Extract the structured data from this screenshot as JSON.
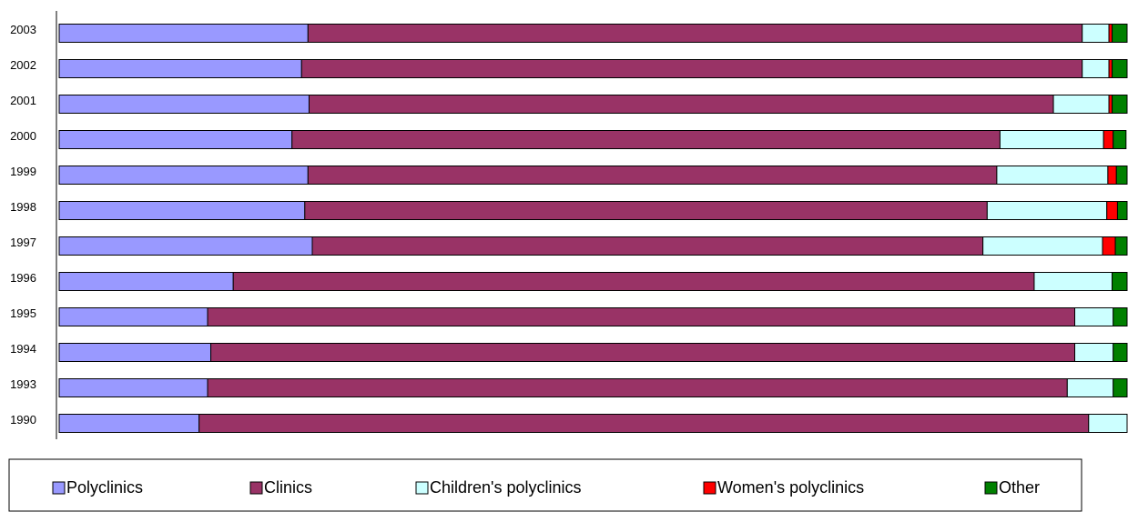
{
  "chart_data": {
    "type": "stacked_barh",
    "categories": [
      "2003",
      "2002",
      "2001",
      "2000",
      "1999",
      "1998",
      "1997",
      "1996",
      "1995",
      "1994",
      "1993",
      "1990"
    ],
    "xlim": [
      0,
      100
    ],
    "legend": "bottom",
    "series": [
      {
        "name": "Polyclinics",
        "color": "#9999ff",
        "values": [
          23.3,
          22.7,
          23.4,
          21.8,
          23.3,
          23.0,
          23.7,
          16.3,
          13.9,
          14.2,
          13.9,
          13.1
        ]
      },
      {
        "name": "Clinics",
        "color": "#993366",
        "values": [
          72.5,
          73.1,
          69.7,
          66.3,
          64.5,
          63.9,
          62.8,
          75.0,
          81.2,
          80.9,
          80.5,
          83.3
        ]
      },
      {
        "name": "Children's polyclinics",
        "color": "#ccffff",
        "values": [
          2.5,
          2.5,
          5.2,
          9.7,
          10.4,
          11.2,
          11.2,
          7.3,
          3.6,
          3.6,
          4.3,
          3.6
        ]
      },
      {
        "name": "Women's polyclinics",
        "color": "#ff0000",
        "values": [
          0.3,
          0.3,
          0.3,
          0.9,
          0.8,
          1.0,
          1.2,
          0,
          0,
          0,
          0,
          0
        ]
      },
      {
        "name": "Other",
        "color": "#008000",
        "values": [
          1.4,
          1.4,
          1.4,
          1.2,
          1.0,
          0.9,
          1.1,
          1.4,
          1.3,
          1.3,
          1.3,
          0
        ]
      }
    ]
  }
}
